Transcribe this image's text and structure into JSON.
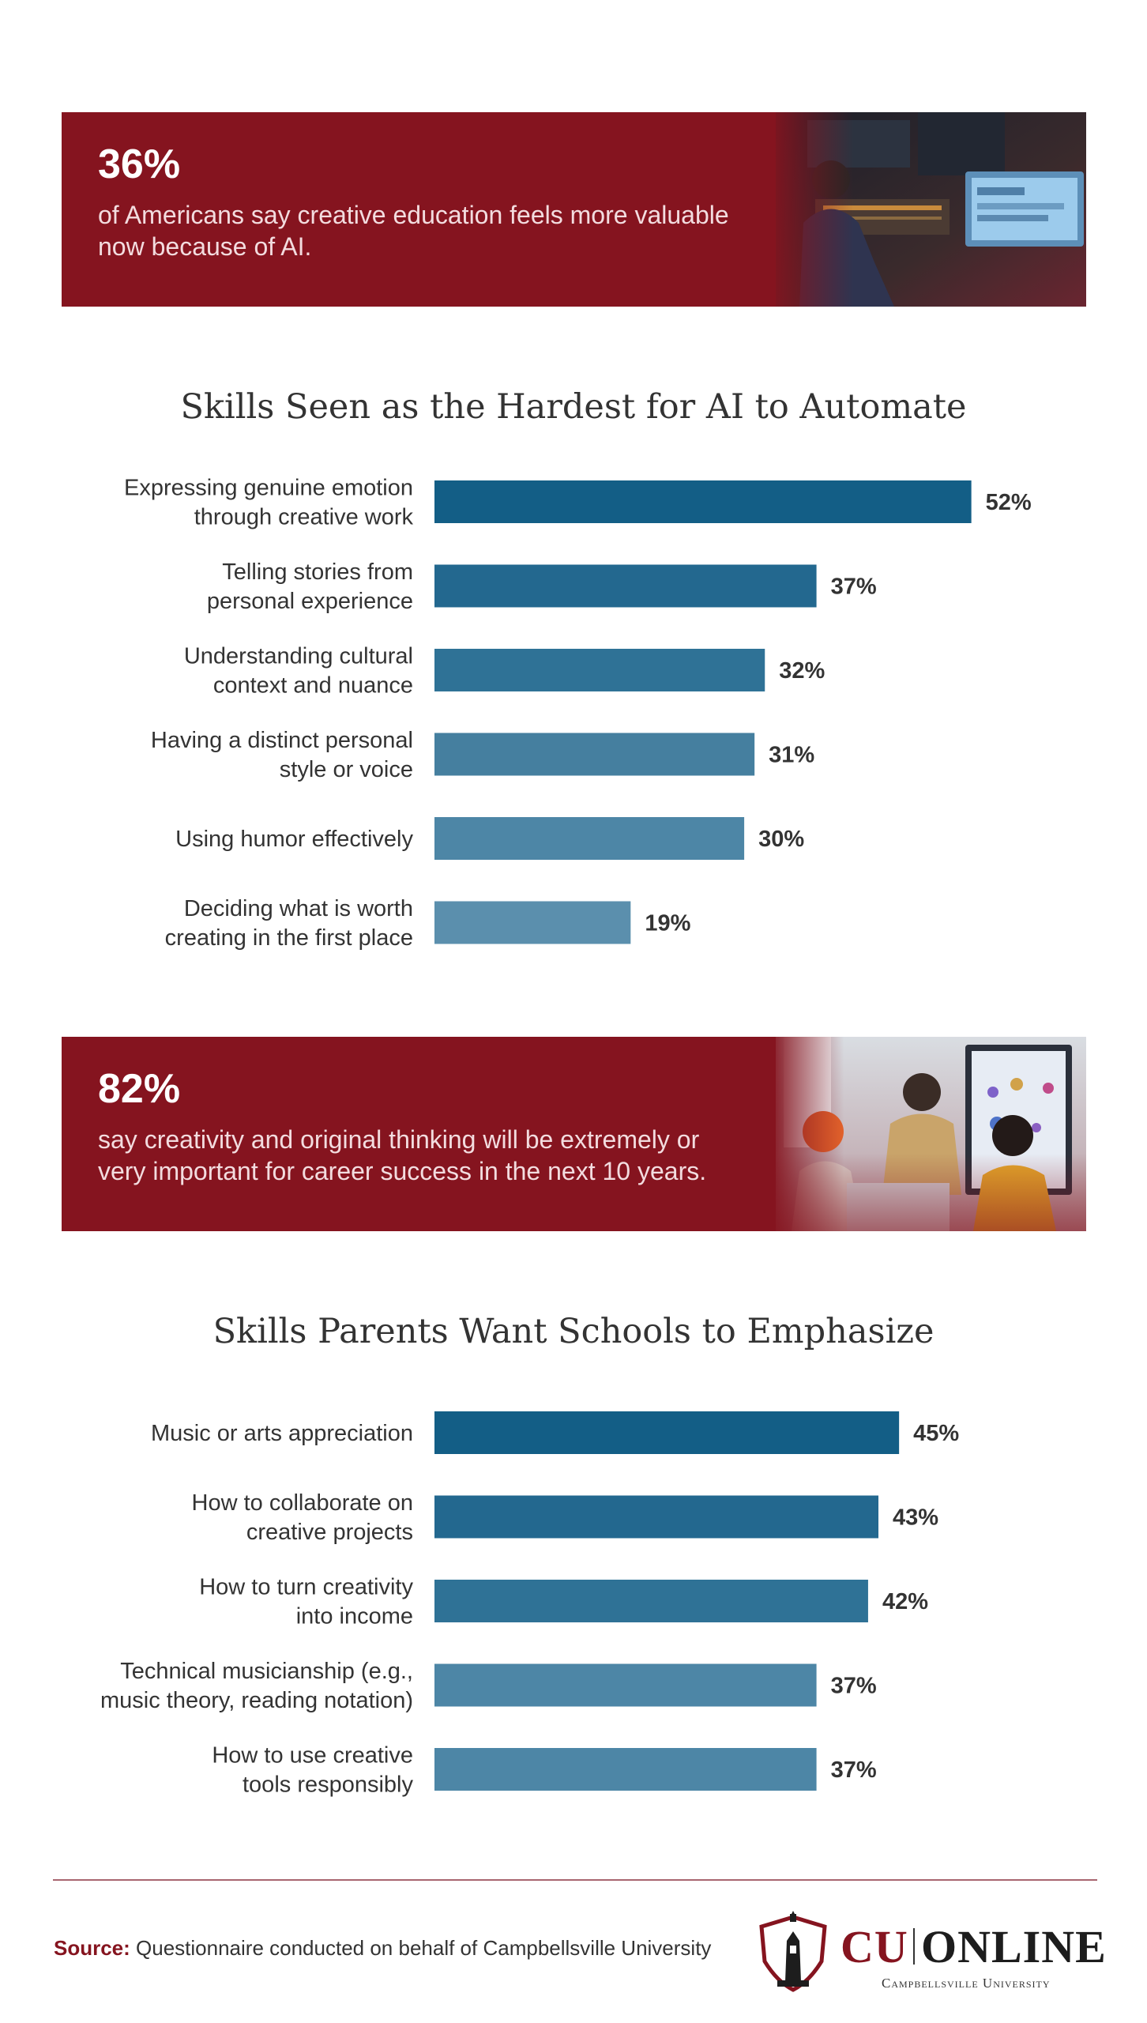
{
  "banner1": {
    "stat": "36%",
    "text": "of Americans say creative education feels more valuable now because of AI."
  },
  "banner2": {
    "stat": "82%",
    "text": "say creativity and original thinking will be extremely or very important for career success in the next 10 years."
  },
  "chart_data": [
    {
      "type": "bar",
      "orientation": "horizontal",
      "title": "Skills Seen as the Hardest for AI to Automate",
      "categories": [
        [
          "Expressing genuine emotion",
          "through creative work"
        ],
        [
          "Telling stories from",
          "personal experience"
        ],
        [
          "Understanding cultural",
          "context and nuance"
        ],
        [
          "Having a distinct personal",
          "style or voice"
        ],
        [
          "Using humor effectively"
        ],
        [
          "Deciding what is worth",
          "creating in the first place"
        ]
      ],
      "values": [
        52,
        37,
        32,
        31,
        30,
        19
      ],
      "value_labels": [
        "52%",
        "37%",
        "32%",
        "31%",
        "30%",
        "19%"
      ],
      "colors": [
        "#135e86",
        "#23688f",
        "#2f7296",
        "#457f9f",
        "#4d86a6",
        "#5b8fad"
      ],
      "grid": false,
      "legend": "none"
    },
    {
      "type": "bar",
      "orientation": "horizontal",
      "title": "Skills Parents Want Schools to Emphasize",
      "categories": [
        [
          "Music or arts appreciation"
        ],
        [
          "How to collaborate on",
          "creative projects"
        ],
        [
          "How to turn creativity",
          "into income"
        ],
        [
          "Technical musicianship (e.g.,",
          "music theory, reading notation)"
        ],
        [
          "How to use creative",
          "tools responsibly"
        ]
      ],
      "values": [
        45,
        43,
        42,
        37,
        37
      ],
      "value_labels": [
        "45%",
        "43%",
        "42%",
        "37%",
        "37%"
      ],
      "colors": [
        "#135e86",
        "#23688f",
        "#2f7296",
        "#4d86a6",
        "#4d86a6"
      ],
      "grid": false,
      "legend": "none"
    }
  ],
  "footer": {
    "source_label": "Source:",
    "source_text": " Questionnaire conducted on behalf of Campbellsville University",
    "logo_cu": "CU",
    "logo_online": "ONLINE",
    "logo_university": "Campbellsville University"
  }
}
